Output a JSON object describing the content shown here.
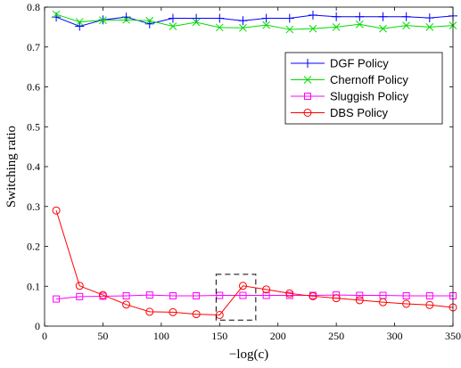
{
  "chart_data": {
    "type": "line",
    "xlabel": "−log(c)",
    "ylabel": "Switching ratio",
    "xlim": [
      0,
      350
    ],
    "ylim": [
      0,
      0.8
    ],
    "xticks": [
      0,
      50,
      100,
      150,
      200,
      250,
      300,
      350
    ],
    "yticks": [
      0,
      0.1,
      0.2,
      0.3,
      0.4,
      0.5,
      0.6,
      0.7,
      0.8
    ],
    "xtick_labels": [
      "0",
      "50",
      "100",
      "150",
      "200",
      "250",
      "300",
      "350"
    ],
    "ytick_labels": [
      "0",
      "0.1",
      "0.2",
      "0.3",
      "0.4",
      "0.5",
      "0.6",
      "0.7",
      "0.8"
    ],
    "grid": false,
    "legend_position": "upper-right",
    "x": [
      10,
      30,
      50,
      70,
      90,
      110,
      130,
      150,
      170,
      190,
      210,
      230,
      250,
      270,
      290,
      310,
      330,
      350
    ],
    "series": [
      {
        "name": "DGF Policy",
        "color": "#0000ff",
        "marker": "plus",
        "values": [
          0.775,
          0.752,
          0.768,
          0.775,
          0.758,
          0.772,
          0.772,
          0.772,
          0.766,
          0.772,
          0.772,
          0.78,
          0.776,
          0.776,
          0.776,
          0.776,
          0.773,
          0.778
        ]
      },
      {
        "name": "Chernoff Policy",
        "color": "#00dd00",
        "marker": "x",
        "values": [
          0.782,
          0.763,
          0.767,
          0.768,
          0.766,
          0.752,
          0.762,
          0.749,
          0.748,
          0.755,
          0.744,
          0.746,
          0.75,
          0.757,
          0.746,
          0.754,
          0.75,
          0.754
        ]
      },
      {
        "name": "Sluggish Policy",
        "color": "#ff00ff",
        "marker": "square",
        "values": [
          0.068,
          0.074,
          0.075,
          0.076,
          0.078,
          0.076,
          0.076,
          0.077,
          0.077,
          0.077,
          0.077,
          0.077,
          0.078,
          0.077,
          0.077,
          0.076,
          0.076,
          0.076
        ]
      },
      {
        "name": "DBS Policy",
        "color": "#ff0000",
        "marker": "circle",
        "values": [
          0.29,
          0.101,
          0.078,
          0.054,
          0.036,
          0.035,
          0.03,
          0.028,
          0.101,
          0.092,
          0.082,
          0.075,
          0.07,
          0.065,
          0.06,
          0.056,
          0.053,
          0.047
        ]
      }
    ],
    "annotation": {
      "type": "dashed-rectangle",
      "x_range": [
        147,
        181
      ],
      "y_range": [
        0.015,
        0.13
      ]
    }
  }
}
